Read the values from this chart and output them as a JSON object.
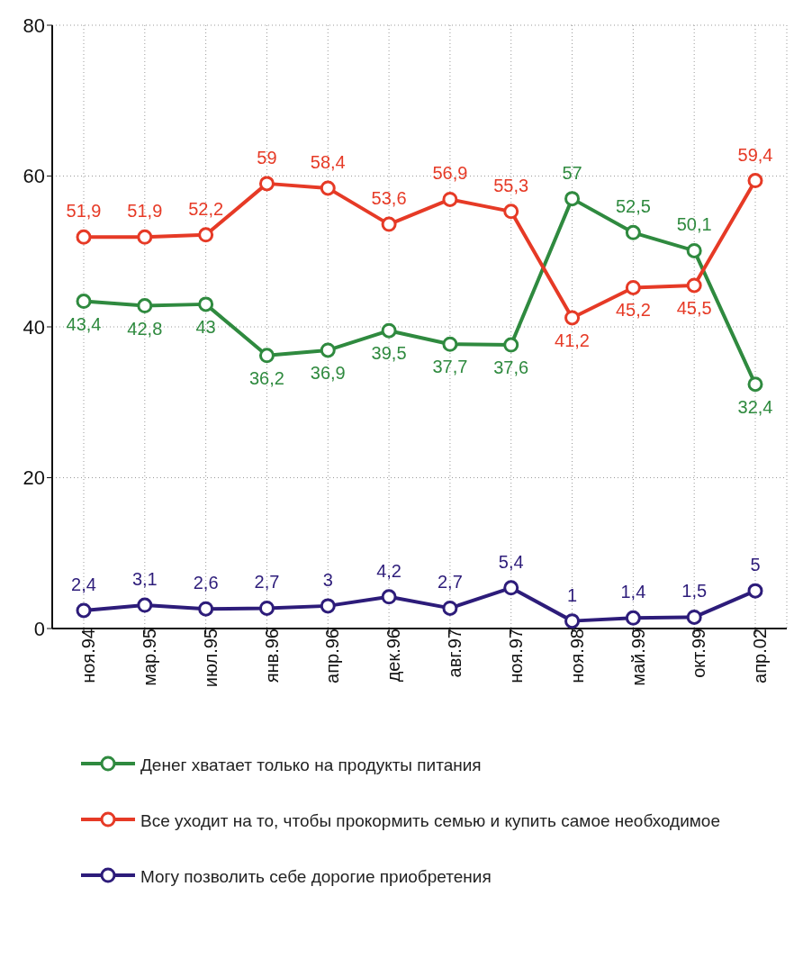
{
  "chart_data": {
    "type": "line",
    "categories": [
      "ноя.94",
      "мар.95",
      "июл.95",
      "янв.96",
      "апр.96",
      "дек.96",
      "авг.97",
      "ноя.97",
      "ноя.98",
      "май.99",
      "окт.99",
      "апр.02"
    ],
    "series": [
      {
        "name": "Денег хватает только на продукты питания",
        "color": "#2f8a3f",
        "values": [
          43.4,
          42.8,
          43,
          36.2,
          36.9,
          39.5,
          37.7,
          37.6,
          57,
          52.5,
          50.1,
          32.4
        ],
        "value_labels": [
          "43,4",
          "42,8",
          "43",
          "36,2",
          "36,9",
          "39,5",
          "37,7",
          "37,6",
          "57",
          "52,5",
          "50,1",
          "32,4"
        ]
      },
      {
        "name": "Все уходит на то, чтобы прокормить семью и купить самое необходимое",
        "color": "#e63a26",
        "values": [
          51.9,
          51.9,
          52.2,
          59,
          58.4,
          53.6,
          56.9,
          55.3,
          41.2,
          45.2,
          45.5,
          59.4
        ],
        "value_labels": [
          "51,9",
          "51,9",
          "52,2",
          "59",
          "58,4",
          "53,6",
          "56,9",
          "55,3",
          "41,2",
          "45,2",
          "45,5",
          "59,4"
        ]
      },
      {
        "name": "Могу позволить себе дорогие приобретения",
        "color": "#2d1c7a",
        "values": [
          2.4,
          3.1,
          2.6,
          2.7,
          3,
          4.2,
          2.7,
          5.4,
          1,
          1.4,
          1.5,
          5
        ],
        "value_labels": [
          "2,4",
          "3,1",
          "2,6",
          "2,7",
          "3",
          "4,2",
          "2,7",
          "5,4",
          "1",
          "1,4",
          "1,5",
          "5"
        ]
      }
    ],
    "ylim": [
      0,
      80
    ],
    "yticks": [
      0,
      20,
      40,
      60,
      80
    ],
    "grid": true,
    "legend": "bottom",
    "marker": "circle",
    "line_style": "solid"
  }
}
